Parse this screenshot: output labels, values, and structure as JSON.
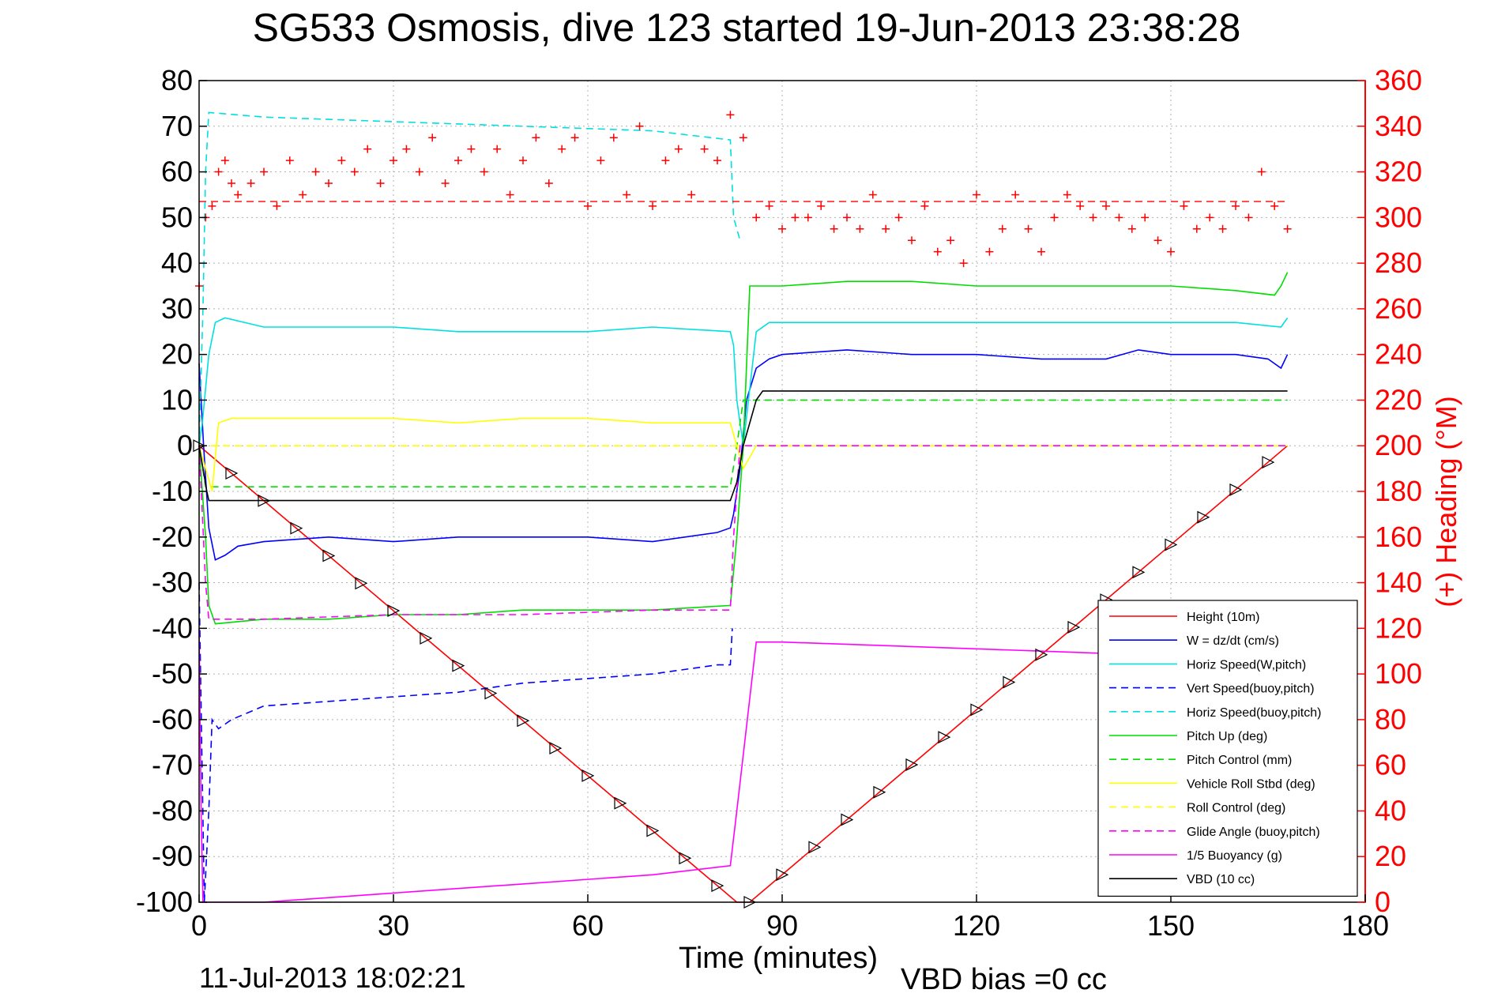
{
  "chart_data": {
    "type": "line",
    "title": "SG533 Osmosis, dive 123 started 19-Jun-2013 23:38:28",
    "xlabel": "Time (minutes)",
    "ylabel": "",
    "y2label": "(+) Heading (°M)",
    "footer_left": "11-Jul-2013 18:02:21",
    "footer_right": "VBD bias =0 cc",
    "xlim": [
      0,
      180
    ],
    "ylim": [
      -100,
      80
    ],
    "y2lim": [
      0,
      360
    ],
    "xticks": [
      0,
      30,
      60,
      90,
      120,
      150,
      180
    ],
    "yticks": [
      80,
      70,
      60,
      50,
      40,
      30,
      20,
      10,
      0,
      -10,
      -20,
      -30,
      -40,
      -50,
      -60,
      -70,
      -80,
      -90,
      -100
    ],
    "y2ticks": [
      360,
      340,
      320,
      300,
      280,
      260,
      240,
      220,
      200,
      180,
      160,
      140,
      120,
      100,
      80,
      60,
      40,
      20,
      0
    ],
    "grid": true,
    "legend_position": "lower-right",
    "colors": {
      "axis": "#000000",
      "right_axis": "#ff0000",
      "grid": "#b0b0b0"
    },
    "series": [
      {
        "name": "Height (10m)",
        "color": "#ff0000",
        "dash": false,
        "marker": "triangle",
        "x": [
          0,
          83,
          85,
          168
        ],
        "y": [
          0,
          -100,
          -100,
          0
        ]
      },
      {
        "name": "W = dz/dt (cm/s)",
        "color": "#0000ff",
        "dash": false,
        "x": [
          0,
          0.7,
          1.5,
          2.5,
          4,
          6,
          10,
          20,
          30,
          40,
          50,
          60,
          70,
          80,
          82,
          82.5,
          83.5,
          84.5,
          86,
          88,
          90,
          100,
          110,
          120,
          130,
          140,
          145,
          150,
          160,
          165,
          167,
          168
        ],
        "y": [
          18,
          0,
          -18,
          -25,
          -24,
          -22,
          -21,
          -20,
          -21,
          -20,
          -20,
          -20,
          -21,
          -19,
          -18,
          -15,
          -5,
          10,
          17,
          19,
          20,
          21,
          20,
          20,
          19,
          19,
          21,
          20,
          20,
          19,
          17,
          20
        ]
      },
      {
        "name": "Horiz Speed(W,pitch)",
        "color": "#00e0e0",
        "dash": false,
        "x": [
          0,
          0.5,
          1.5,
          2.5,
          4,
          10,
          20,
          30,
          40,
          50,
          60,
          70,
          82,
          82.5,
          83,
          84,
          86,
          88,
          90,
          100,
          110,
          120,
          130,
          140,
          150,
          160,
          167,
          168
        ],
        "y": [
          0,
          5,
          20,
          27,
          28,
          26,
          26,
          26,
          25,
          25,
          25,
          26,
          25,
          22,
          10,
          0,
          25,
          27,
          27,
          27,
          27,
          27,
          27,
          27,
          27,
          27,
          26,
          28
        ]
      },
      {
        "name": "Vert Speed(buoy,pitch)",
        "color": "#0000ff",
        "dash": true,
        "x": [
          0,
          0.8,
          1.5,
          2,
          3,
          5,
          10,
          20,
          30,
          40,
          50,
          60,
          70,
          80,
          82,
          82.3
        ],
        "y": [
          -30,
          -100,
          -80,
          -60,
          -62,
          -60,
          -57,
          -56,
          -55,
          -54,
          -52,
          -51,
          -50,
          -48,
          -48,
          -40
        ]
      },
      {
        "name": "Horiz Speed(buoy,pitch)",
        "color": "#00e0e0",
        "dash": true,
        "x": [
          0,
          0.6,
          1,
          1.5,
          10,
          30,
          50,
          70,
          82,
          82.5,
          83.5
        ],
        "y": [
          0,
          30,
          60,
          73,
          72,
          71,
          70,
          69,
          67,
          50,
          45
        ]
      },
      {
        "name": "Pitch Up (deg)",
        "color": "#00dd00",
        "dash": false,
        "x": [
          0,
          1,
          1.5,
          2.5,
          10,
          20,
          30,
          40,
          50,
          60,
          70,
          82,
          83,
          84,
          85,
          86,
          90,
          100,
          110,
          120,
          130,
          140,
          150,
          160,
          166,
          167,
          168
        ],
        "y": [
          0,
          -20,
          -35,
          -39,
          -38,
          -38,
          -37,
          -37,
          -36,
          -36,
          -36,
          -35,
          -20,
          0,
          35,
          35,
          35,
          36,
          36,
          35,
          35,
          35,
          35,
          34,
          33,
          35,
          38
        ]
      },
      {
        "name": "Pitch Control (mm)",
        "color": "#00dd00",
        "dash": true,
        "x": [
          0,
          1,
          82,
          83,
          84,
          168
        ],
        "y": [
          0,
          -9,
          -9,
          0,
          10,
          10
        ]
      },
      {
        "name": "Vehicle Roll Stbd (deg)",
        "color": "#ffff00",
        "dash": false,
        "x": [
          0,
          1,
          2,
          3,
          5,
          10,
          20,
          30,
          40,
          50,
          60,
          70,
          80,
          82,
          83,
          84,
          86,
          168
        ],
        "y": [
          0,
          -5,
          -10,
          5,
          6,
          6,
          6,
          6,
          5,
          6,
          6,
          5,
          5,
          5,
          0,
          -5,
          0,
          0
        ]
      },
      {
        "name": "Roll Control (deg)",
        "color": "#ffff00",
        "dash": true,
        "x": [
          0,
          168
        ],
        "y": [
          0,
          0
        ]
      },
      {
        "name": "Glide Angle (buoy,pitch)",
        "color": "#ff00ff",
        "dash": true,
        "x": [
          0,
          1,
          1.5,
          10,
          30,
          50,
          70,
          82,
          82.5,
          83.5,
          84,
          168
        ],
        "y": [
          0,
          -30,
          -38,
          -38,
          -37,
          -37,
          -36,
          -36,
          -20,
          0,
          0,
          0
        ]
      },
      {
        "name": "1/5 Buoyancy (g)",
        "color": "#ff00ff",
        "dash": false,
        "x": [
          0,
          0.3,
          0.6,
          10,
          30,
          50,
          70,
          82,
          83,
          86,
          90,
          110,
          130,
          150,
          168
        ],
        "y": [
          -40,
          -80,
          -100,
          -100,
          -98,
          -96,
          -94,
          -92,
          -80,
          -43,
          -43,
          -44,
          -45,
          -46,
          -47
        ]
      },
      {
        "name": "VBD (10 cc)",
        "color": "#000000",
        "dash": false,
        "x": [
          0,
          1.2,
          1.5,
          82,
          83,
          84,
          86,
          87,
          168
        ],
        "y": [
          0,
          -10,
          -12,
          -12,
          -8,
          0,
          10,
          12,
          12
        ]
      }
    ],
    "heading": {
      "name": "Heading",
      "color": "#ff0000",
      "marker": "+",
      "axis": "right",
      "target": 307,
      "x": [
        0,
        1,
        2,
        3,
        4,
        5,
        6,
        8,
        10,
        12,
        14,
        16,
        18,
        20,
        22,
        24,
        26,
        28,
        30,
        32,
        34,
        36,
        38,
        40,
        42,
        44,
        46,
        48,
        50,
        52,
        54,
        56,
        58,
        60,
        62,
        64,
        66,
        68,
        70,
        72,
        74,
        76,
        78,
        80,
        82,
        84,
        86,
        88,
        90,
        92,
        94,
        96,
        98,
        100,
        102,
        104,
        106,
        108,
        110,
        112,
        114,
        116,
        118,
        120,
        122,
        124,
        126,
        128,
        130,
        132,
        134,
        136,
        138,
        140,
        142,
        144,
        146,
        148,
        150,
        152,
        154,
        156,
        158,
        160,
        162,
        164,
        166,
        168
      ],
      "y": [
        270,
        300,
        305,
        320,
        325,
        315,
        310,
        315,
        320,
        305,
        325,
        310,
        320,
        315,
        325,
        320,
        330,
        315,
        325,
        330,
        320,
        335,
        315,
        325,
        330,
        320,
        330,
        310,
        325,
        335,
        315,
        330,
        335,
        305,
        325,
        335,
        310,
        340,
        305,
        325,
        330,
        310,
        330,
        325,
        345,
        335,
        300,
        305,
        295,
        300,
        300,
        305,
        295,
        300,
        295,
        310,
        295,
        300,
        290,
        305,
        285,
        290,
        280,
        310,
        285,
        295,
        310,
        295,
        285,
        300,
        310,
        305,
        300,
        305,
        300,
        295,
        300,
        290,
        285,
        305,
        295,
        300,
        295,
        305,
        300,
        320,
        305,
        295
      ]
    }
  }
}
